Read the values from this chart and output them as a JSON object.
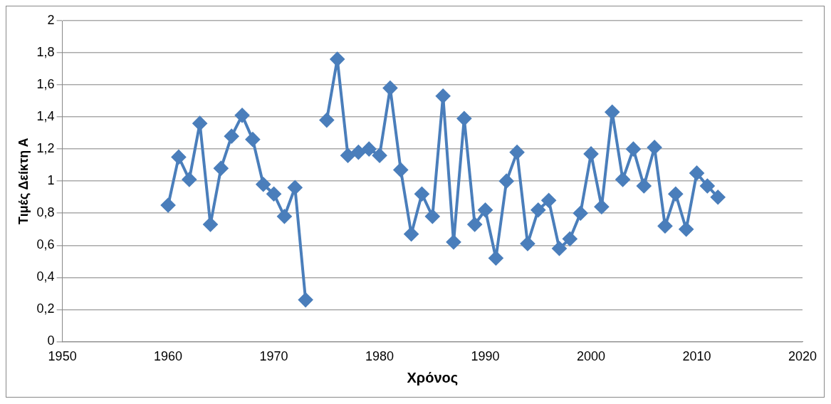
{
  "chart_data": {
    "type": "line",
    "xlabel": "Χρόνος",
    "ylabel": "Τιμές Δείκτη Α",
    "x": [
      1960,
      1961,
      1962,
      1963,
      1964,
      1965,
      1966,
      1967,
      1968,
      1969,
      1970,
      1971,
      1972,
      1973,
      1974,
      1975,
      1976,
      1977,
      1978,
      1979,
      1980,
      1981,
      1982,
      1983,
      1984,
      1985,
      1986,
      1987,
      1988,
      1989,
      1990,
      1991,
      1992,
      1993,
      1994,
      1995,
      1996,
      1997,
      1998,
      1999,
      2000,
      2001,
      2002,
      2003,
      2004,
      2005,
      2006,
      2007,
      2008,
      2009,
      2010,
      2011,
      2012
    ],
    "series": [
      {
        "color": "#4a7ebb",
        "values": [
          0.85,
          1.15,
          1.01,
          1.36,
          0.73,
          1.08,
          1.28,
          1.41,
          1.26,
          0.98,
          0.92,
          0.78,
          0.96,
          0.26,
          null,
          1.38,
          1.76,
          1.16,
          1.18,
          1.2,
          1.16,
          1.58,
          1.07,
          0.67,
          0.92,
          0.78,
          1.53,
          0.62,
          1.39,
          0.73,
          0.82,
          0.52,
          1.0,
          1.18,
          0.61,
          0.82,
          0.88,
          0.58,
          0.64,
          0.8,
          1.17,
          0.84,
          1.43,
          1.01,
          1.2,
          0.97,
          1.21,
          0.72,
          0.92,
          0.7,
          1.05,
          0.97,
          0.9
        ]
      }
    ],
    "xlim": [
      1950,
      2020
    ],
    "xticks": [
      1950,
      1960,
      1970,
      1980,
      1990,
      2000,
      2010,
      2020
    ],
    "ylim": [
      0,
      2
    ],
    "yticks": [
      0,
      {
        "value": 0.2,
        "label": "0,2"
      },
      {
        "value": 0.4,
        "label": "0,4"
      },
      {
        "value": 0.6,
        "label": "0,6"
      },
      {
        "value": 0.8,
        "label": "0,8"
      },
      1,
      {
        "value": 1.2,
        "label": "1,2"
      },
      {
        "value": 1.4,
        "label": "1,4"
      },
      {
        "value": 1.6,
        "label": "1,6"
      },
      {
        "value": 1.8,
        "label": "1,8"
      },
      2
    ],
    "grid": "y",
    "legend": false,
    "marker": "diamond",
    "line_style": "solid"
  }
}
